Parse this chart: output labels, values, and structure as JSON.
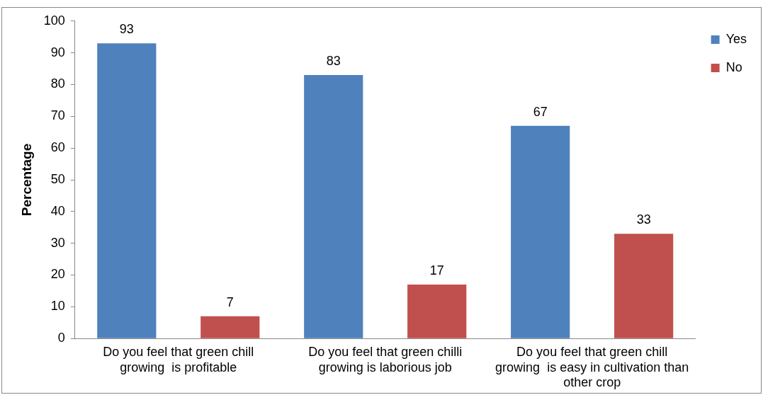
{
  "chart_data": {
    "type": "bar",
    "ylabel": "Percentage",
    "categories": [
      "Do you feel that green chill growing  is profitable",
      "Do you feel that green chilli growing is laborious job",
      "Do you feel that green chill growing  is easy in cultivation than other crop"
    ],
    "series": [
      {
        "name": "Yes",
        "color": "#4f81bd",
        "values": [
          93,
          83,
          67
        ]
      },
      {
        "name": "No",
        "color": "#c0504d",
        "values": [
          7,
          17,
          33
        ]
      }
    ],
    "ylim": [
      0,
      100
    ],
    "yticks": [
      0,
      10,
      20,
      30,
      40,
      50,
      60,
      70,
      80,
      90,
      100
    ],
    "grid": false,
    "legend": "top right",
    "data_labels": true
  }
}
